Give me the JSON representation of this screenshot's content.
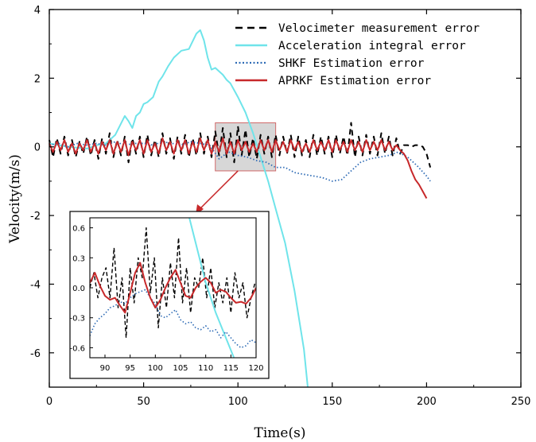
{
  "chart_data": {
    "type": "line",
    "main": {
      "xlabel": "Time(s)",
      "ylabel": "Velocity(m/s)",
      "xlim": [
        0,
        250
      ],
      "ylim": [
        -7,
        4
      ],
      "xticks": [
        "0",
        "50",
        "100",
        "150",
        "200",
        "250"
      ],
      "yticks": [
        "-6",
        "-4",
        "-2",
        "0",
        "2",
        "4"
      ],
      "legend_position": "top-right",
      "series": [
        {
          "name": "Velocimeter measurement error",
          "color": "#000000",
          "style": "dashed",
          "x": [
            0,
            2,
            4,
            6,
            8,
            10,
            12,
            14,
            16,
            18,
            20,
            22,
            24,
            26,
            28,
            30,
            32,
            34,
            36,
            38,
            40,
            42,
            44,
            46,
            48,
            50,
            52,
            54,
            56,
            58,
            60,
            62,
            64,
            66,
            68,
            70,
            72,
            74,
            76,
            78,
            80,
            82,
            84,
            86,
            88,
            90,
            92,
            94,
            96,
            98,
            100,
            102,
            104,
            106,
            108,
            110,
            112,
            114,
            116,
            118,
            120,
            122,
            124,
            126,
            128,
            130,
            132,
            134,
            136,
            138,
            140,
            142,
            144,
            146,
            148,
            150,
            152,
            154,
            156,
            158,
            160,
            162,
            164,
            166,
            168,
            170,
            172,
            174,
            176,
            178,
            180,
            182,
            184,
            186,
            188,
            190,
            192,
            194,
            196,
            198,
            200,
            202
          ],
          "y": [
            0.2,
            -0.3,
            0.25,
            -0.2,
            0.3,
            -0.25,
            0.2,
            -0.3,
            0.15,
            -0.2,
            0.3,
            -0.25,
            0.2,
            -0.35,
            0.25,
            -0.2,
            0.4,
            -0.3,
            0.2,
            -0.25,
            0.3,
            -0.45,
            0.25,
            -0.2,
            0.3,
            -0.3,
            0.35,
            -0.25,
            0.2,
            -0.3,
            0.4,
            -0.2,
            0.25,
            -0.35,
            0.3,
            -0.2,
            0.35,
            -0.3,
            0.25,
            -0.25,
            0.4,
            -0.2,
            0.3,
            -0.3,
            0.45,
            -0.25,
            0.55,
            -0.3,
            0.4,
            -0.45,
            0.6,
            -0.25,
            0.5,
            -0.3,
            0.25,
            -0.35,
            0.35,
            -0.2,
            0.3,
            -0.3,
            0.35,
            -0.25,
            0.3,
            -0.2,
            0.35,
            -0.3,
            0.3,
            -0.25,
            0.2,
            -0.3,
            0.35,
            -0.25,
            0.3,
            -0.2,
            0.3,
            -0.3,
            0.35,
            -0.2,
            0.3,
            -0.25,
            0.7,
            -0.3,
            0.3,
            -0.25,
            0.35,
            -0.2,
            0.3,
            -0.25,
            0.4,
            -0.2,
            0.3,
            -0.25,
            0.25,
            -0.2,
            0.05,
            0.05,
            0.0,
            0.05,
            0.05,
            0.0,
            -0.2,
            -0.6
          ]
        },
        {
          "name": "Acceleration integral error",
          "color": "#6fe4ea",
          "style": "solid",
          "x": [
            0,
            10,
            20,
            25,
            30,
            35,
            40,
            42,
            44,
            46,
            48,
            50,
            52,
            55,
            58,
            60,
            63,
            66,
            70,
            74,
            78,
            80,
            82,
            84,
            86,
            88,
            90,
            92,
            94,
            96,
            98,
            100,
            104,
            108,
            112,
            116,
            120,
            125,
            130,
            135,
            137
          ],
          "y": [
            0.1,
            0.0,
            -0.05,
            0.05,
            0.1,
            0.35,
            0.9,
            0.75,
            0.55,
            0.9,
            1.0,
            1.25,
            1.3,
            1.45,
            1.9,
            2.05,
            2.35,
            2.6,
            2.8,
            2.85,
            3.3,
            3.4,
            3.1,
            2.6,
            2.25,
            2.3,
            2.2,
            2.1,
            1.95,
            1.85,
            1.65,
            1.45,
            1.0,
            0.4,
            -0.3,
            -1.0,
            -1.8,
            -2.8,
            -4.2,
            -5.9,
            -7.0
          ]
        },
        {
          "name": "SHKF Estimation error",
          "color": "#2e6bb5",
          "style": "dotted",
          "x": [
            0,
            5,
            10,
            15,
            20,
            25,
            30,
            35,
            40,
            45,
            50,
            55,
            60,
            65,
            70,
            75,
            80,
            85,
            90,
            95,
            100,
            105,
            110,
            115,
            120,
            125,
            130,
            135,
            140,
            145,
            150,
            155,
            160,
            165,
            170,
            175,
            180,
            185,
            190,
            195,
            200,
            202
          ],
          "y": [
            0.05,
            0.1,
            0.0,
            0.1,
            0.05,
            0.1,
            0.05,
            0.15,
            0.05,
            0.1,
            0.1,
            0.05,
            0.15,
            0.1,
            0.05,
            0.15,
            0.1,
            0.05,
            -0.35,
            -0.15,
            -0.25,
            -0.3,
            -0.4,
            -0.45,
            -0.6,
            -0.6,
            -0.75,
            -0.8,
            -0.85,
            -0.9,
            -1.0,
            -0.95,
            -0.7,
            -0.45,
            -0.35,
            -0.3,
            -0.25,
            -0.15,
            -0.3,
            -0.55,
            -0.85,
            -1.0
          ]
        },
        {
          "name": "APRKF Estimation error",
          "color": "#c7282a",
          "style": "solid",
          "x": [
            0,
            2,
            4,
            6,
            8,
            10,
            12,
            14,
            16,
            18,
            20,
            22,
            24,
            26,
            28,
            30,
            32,
            34,
            36,
            38,
            40,
            42,
            44,
            46,
            48,
            50,
            52,
            54,
            56,
            58,
            60,
            62,
            64,
            66,
            68,
            70,
            72,
            74,
            76,
            78,
            80,
            82,
            84,
            86,
            88,
            90,
            92,
            94,
            96,
            98,
            100,
            102,
            104,
            106,
            108,
            110,
            112,
            114,
            116,
            118,
            120,
            122,
            124,
            126,
            128,
            130,
            132,
            134,
            136,
            138,
            140,
            142,
            144,
            146,
            148,
            150,
            152,
            154,
            156,
            158,
            160,
            162,
            164,
            166,
            168,
            170,
            172,
            174,
            176,
            178,
            180,
            182,
            184,
            186,
            188,
            190,
            192,
            194,
            196,
            198,
            200
          ],
          "y": [
            0.1,
            -0.15,
            0.15,
            -0.1,
            0.2,
            -0.15,
            0.1,
            -0.2,
            0.1,
            -0.1,
            0.2,
            -0.15,
            0.1,
            -0.2,
            0.15,
            -0.1,
            0.2,
            -0.2,
            0.15,
            -0.15,
            0.2,
            -0.25,
            0.15,
            -0.1,
            0.2,
            -0.2,
            0.2,
            -0.15,
            0.1,
            -0.2,
            0.25,
            -0.1,
            0.15,
            -0.2,
            0.2,
            -0.1,
            0.2,
            -0.2,
            0.15,
            -0.15,
            0.25,
            -0.1,
            0.2,
            -0.2,
            0.15,
            -0.15,
            0.25,
            -0.2,
            0.15,
            -0.2,
            0.2,
            -0.1,
            0.15,
            -0.15,
            0.1,
            -0.15,
            0.2,
            -0.1,
            0.2,
            -0.15,
            0.2,
            -0.1,
            0.15,
            -0.15,
            0.2,
            -0.1,
            0.15,
            -0.15,
            0.1,
            -0.15,
            0.2,
            -0.1,
            0.15,
            -0.1,
            0.2,
            -0.15,
            0.2,
            -0.1,
            0.15,
            -0.15,
            0.2,
            -0.1,
            0.15,
            -0.15,
            0.2,
            -0.1,
            0.15,
            -0.1,
            0.2,
            -0.1,
            0.15,
            -0.1,
            0.05,
            -0.1,
            -0.2,
            -0.4,
            -0.7,
            -0.95,
            -1.1,
            -1.3,
            -1.5
          ]
        }
      ],
      "highlight_box": {
        "x0": 88,
        "x1": 120,
        "y0": -0.7,
        "y1": 0.7
      }
    },
    "inset": {
      "xlim": [
        87,
        120
      ],
      "ylim": [
        -0.7,
        0.7
      ],
      "xticks": [
        "90",
        "95",
        "100",
        "105",
        "110",
        "115",
        "120"
      ],
      "yticks": [
        "0.6",
        "0.3",
        "0.0",
        "-0.3",
        "-0.6"
      ],
      "series": [
        {
          "name": "Velocimeter measurement error",
          "color": "#000000",
          "style": "dashed",
          "x": [
            87,
            87.8,
            88.6,
            89.4,
            90.2,
            91.0,
            91.8,
            92.6,
            93.4,
            94.2,
            95.0,
            95.8,
            96.6,
            97.4,
            98.2,
            99.0,
            99.8,
            100.6,
            101.4,
            102.2,
            103.0,
            103.8,
            104.6,
            105.4,
            106.2,
            107.0,
            107.8,
            108.6,
            109.4,
            110.2,
            111.0,
            111.8,
            112.6,
            113.4,
            114.2,
            115.0,
            115.8,
            116.6,
            117.4,
            118.2,
            119.0,
            119.8
          ],
          "y": [
            0.0,
            0.15,
            -0.1,
            0.1,
            0.2,
            -0.1,
            0.4,
            -0.2,
            0.1,
            -0.5,
            0.2,
            -0.15,
            0.3,
            0.1,
            0.6,
            -0.05,
            0.3,
            -0.4,
            0.1,
            -0.2,
            0.25,
            -0.1,
            0.5,
            -0.15,
            0.2,
            -0.25,
            0.1,
            0.0,
            0.3,
            -0.1,
            0.2,
            -0.2,
            0.05,
            -0.15,
            0.1,
            -0.25,
            0.15,
            -0.1,
            0.05,
            -0.3,
            -0.1,
            0.05
          ]
        },
        {
          "name": "Acceleration integral error",
          "color": "#6fe4ea",
          "style": "solid",
          "x": [
            106.5,
            108,
            110,
            112,
            114,
            116
          ],
          "y": [
            0.75,
            0.45,
            0.05,
            -0.25,
            -0.5,
            -0.75
          ]
        },
        {
          "name": "SHKF Estimation error",
          "color": "#2e6bb5",
          "style": "dotted",
          "x": [
            87,
            88,
            89,
            90,
            91,
            92,
            93,
            94,
            95,
            96,
            97,
            98,
            99,
            100,
            101,
            102,
            103,
            104,
            105,
            106,
            107,
            108,
            109,
            110,
            111,
            112,
            113,
            114,
            115,
            116,
            117,
            118,
            119,
            120
          ],
          "y": [
            -0.48,
            -0.36,
            -0.3,
            -0.26,
            -0.2,
            -0.18,
            -0.14,
            -0.16,
            -0.1,
            -0.06,
            -0.04,
            -0.02,
            -0.1,
            -0.16,
            -0.28,
            -0.3,
            -0.26,
            -0.22,
            -0.32,
            -0.36,
            -0.34,
            -0.4,
            -0.42,
            -0.38,
            -0.44,
            -0.42,
            -0.5,
            -0.44,
            -0.5,
            -0.56,
            -0.6,
            -0.58,
            -0.52,
            -0.55
          ]
        },
        {
          "name": "APRKF Estimation error",
          "color": "#c7282a",
          "style": "solid",
          "x": [
            87,
            88,
            89,
            90,
            91,
            92,
            93,
            94,
            95,
            96,
            97,
            98,
            99,
            100,
            101,
            102,
            103,
            104,
            105,
            106,
            107,
            108,
            109,
            110,
            111,
            112,
            113,
            114,
            115,
            116,
            117,
            118,
            119,
            120
          ],
          "y": [
            0.05,
            0.15,
            0.02,
            -0.08,
            -0.12,
            -0.1,
            -0.18,
            -0.25,
            -0.05,
            0.15,
            0.25,
            0.05,
            -0.1,
            -0.2,
            -0.12,
            0.0,
            0.1,
            0.18,
            0.05,
            -0.08,
            -0.1,
            0.0,
            0.06,
            0.1,
            0.05,
            -0.05,
            -0.02,
            -0.04,
            -0.1,
            -0.15,
            -0.14,
            -0.16,
            -0.1,
            0.0
          ]
        }
      ]
    }
  }
}
